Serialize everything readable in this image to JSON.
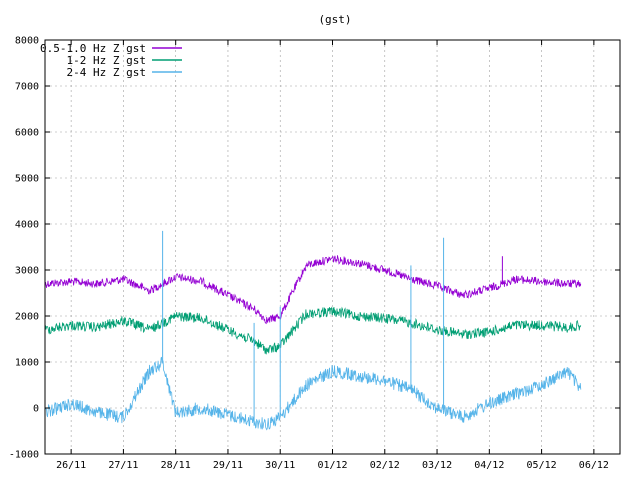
{
  "chart_data": {
    "type": "line",
    "title": "(gst)",
    "xlabel": "",
    "ylabel": "",
    "xlim": [
      "2015-11-25T12:00",
      "2015-12-06T12:00"
    ],
    "ylim": [
      -1000,
      8000
    ],
    "yticks": [
      -1000,
      0,
      1000,
      2000,
      3000,
      4000,
      5000,
      6000,
      7000,
      8000
    ],
    "xticks": [
      {
        "label": "26/11",
        "date": "2015-11-26"
      },
      {
        "label": "27/11",
        "date": "2015-11-27"
      },
      {
        "label": "28/11",
        "date": "2015-11-28"
      },
      {
        "label": "29/11",
        "date": "2015-11-29"
      },
      {
        "label": "30/11",
        "date": "2015-11-30"
      },
      {
        "label": "01/12",
        "date": "2015-12-01"
      },
      {
        "label": "02/12",
        "date": "2015-12-02"
      },
      {
        "label": "03/12",
        "date": "2015-12-03"
      },
      {
        "label": "04/12",
        "date": "2015-12-04"
      },
      {
        "label": "05/12",
        "date": "2015-12-05"
      },
      {
        "label": "06/12",
        "date": "2015-12-06"
      }
    ],
    "grid": true,
    "legend_position": "top-left",
    "series": [
      {
        "name": "0.5-1.0 Hz Z gst",
        "color": "#9400d3",
        "x": [
          "2015-11-25T12:00",
          "2015-11-26T00:00",
          "2015-11-26T12:00",
          "2015-11-27T00:00",
          "2015-11-27T12:00",
          "2015-11-28T00:00",
          "2015-11-28T12:00",
          "2015-11-29T00:00",
          "2015-11-29T12:00",
          "2015-11-29T18:00",
          "2015-11-30T00:00",
          "2015-11-30T12:00",
          "2015-12-01T00:00",
          "2015-12-01T12:00",
          "2015-12-02T00:00",
          "2015-12-02T12:00",
          "2015-12-03T00:00",
          "2015-12-03T12:00",
          "2015-12-04T00:00",
          "2015-12-04T12:00",
          "2015-12-05T00:00",
          "2015-12-05T12:00",
          "2015-12-05T18:00"
        ],
        "values": [
          2700,
          2750,
          2700,
          2800,
          2550,
          2850,
          2750,
          2450,
          2150,
          1900,
          2000,
          3100,
          3250,
          3150,
          3000,
          2800,
          2650,
          2450,
          2600,
          2800,
          2750,
          2700,
          2700
        ]
      },
      {
        "name": "1-2 Hz Z gst",
        "color": "#009e73",
        "x": [
          "2015-11-25T12:00",
          "2015-11-26T00:00",
          "2015-11-26T12:00",
          "2015-11-27T00:00",
          "2015-11-27T12:00",
          "2015-11-28T00:00",
          "2015-11-28T12:00",
          "2015-11-29T00:00",
          "2015-11-29T12:00",
          "2015-11-29T18:00",
          "2015-11-30T00:00",
          "2015-11-30T12:00",
          "2015-12-01T00:00",
          "2015-12-01T12:00",
          "2015-12-02T00:00",
          "2015-12-02T12:00",
          "2015-12-03T00:00",
          "2015-12-03T12:00",
          "2015-12-04T00:00",
          "2015-12-04T12:00",
          "2015-12-05T00:00",
          "2015-12-05T12:00",
          "2015-12-05T18:00"
        ],
        "values": [
          1700,
          1800,
          1750,
          1900,
          1700,
          2000,
          1950,
          1700,
          1450,
          1250,
          1350,
          2050,
          2100,
          2000,
          1950,
          1850,
          1700,
          1600,
          1650,
          1800,
          1800,
          1750,
          1800
        ]
      },
      {
        "name": "2-4 Hz Z gst",
        "color": "#56b4e9",
        "x": [
          "2015-11-25T12:00",
          "2015-11-26T00:00",
          "2015-11-26T12:00",
          "2015-11-27T00:00",
          "2015-11-27T06:00",
          "2015-11-27T12:00",
          "2015-11-27T18:00",
          "2015-11-28T00:00",
          "2015-11-28T12:00",
          "2015-11-29T00:00",
          "2015-11-29T12:00",
          "2015-11-29T18:00",
          "2015-11-30T00:00",
          "2015-11-30T12:00",
          "2015-12-01T00:00",
          "2015-12-01T12:00",
          "2015-12-02T00:00",
          "2015-12-02T12:00",
          "2015-12-03T00:00",
          "2015-12-03T12:00",
          "2015-12-04T00:00",
          "2015-12-04T12:00",
          "2015-12-05T00:00",
          "2015-12-05T12:00",
          "2015-12-05T18:00"
        ],
        "values": [
          -100,
          100,
          -100,
          -200,
          300,
          800,
          1000,
          -100,
          0,
          -150,
          -300,
          -350,
          -200,
          500,
          800,
          700,
          600,
          400,
          0,
          -200,
          100,
          300,
          500,
          800,
          400
        ]
      }
    ],
    "spikes": [
      {
        "series": "0.5-1.0 Hz Z gst",
        "x": "2015-12-04T06:00",
        "value": 3300
      },
      {
        "series": "2-4 Hz Z gst",
        "x": "2015-11-27T18:00",
        "value": 3850
      },
      {
        "series": "2-4 Hz Z gst",
        "x": "2015-11-30T00:00",
        "value": 2200
      },
      {
        "series": "2-4 Hz Z gst",
        "x": "2015-12-02T12:00",
        "value": 3100
      },
      {
        "series": "2-4 Hz Z gst",
        "x": "2015-12-03T03:00",
        "value": 3700
      },
      {
        "series": "2-4 Hz Z gst",
        "x": "2015-11-29T12:00",
        "value": 1850
      }
    ]
  }
}
